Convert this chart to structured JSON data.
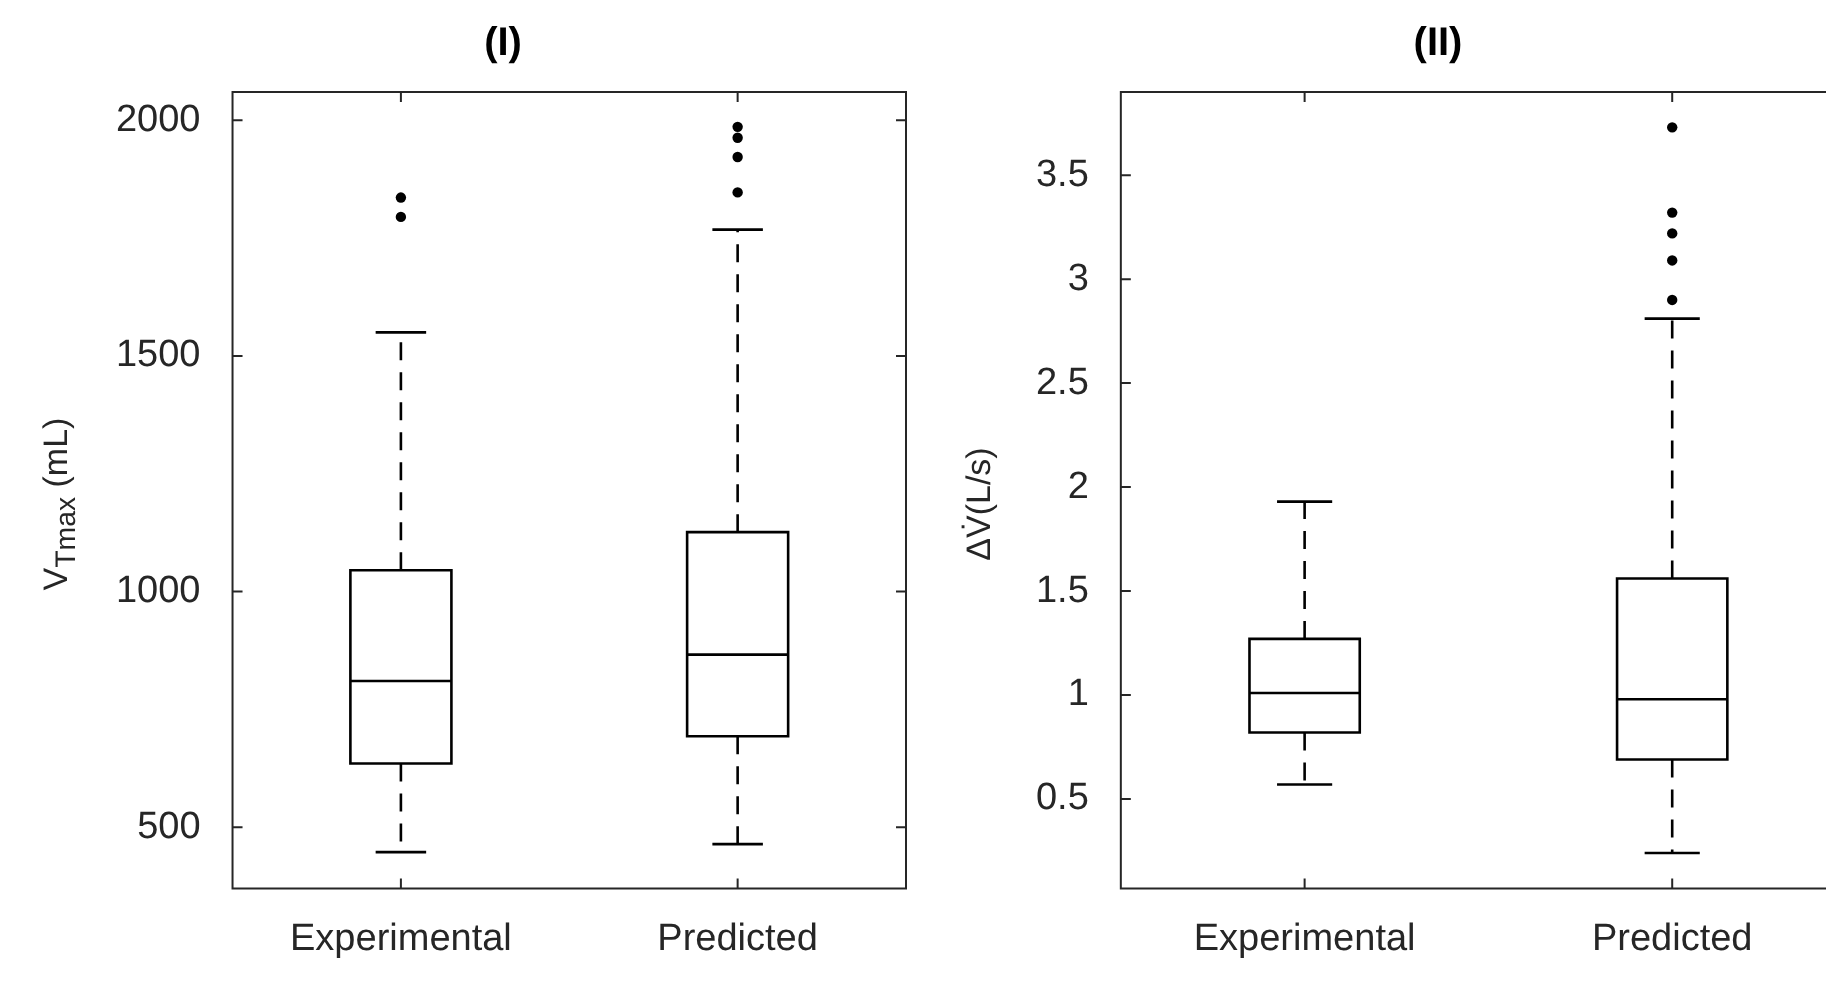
{
  "chart_data": [
    {
      "type": "box",
      "title": "(I)",
      "ylabel": "V$_{Tmax}$ (mL)",
      "categories": [
        "Experimental",
        "Predicted"
      ],
      "boxes": [
        {
          "low": 447,
          "q1": 635,
          "median": 810,
          "q3": 1045,
          "high": 1550,
          "outliers": [
            1795,
            1836
          ]
        },
        {
          "low": 464,
          "q1": 693,
          "median": 866,
          "q3": 1126,
          "high": 1768,
          "outliers": [
            1847,
            1922,
            1963,
            1986
          ]
        }
      ],
      "ylim": [
        370,
        2060
      ],
      "yticks": [
        500,
        1000,
        1500,
        2000
      ]
    },
    {
      "type": "box",
      "title": "(II)",
      "ylabel": "ΔV̇(L/s)",
      "categories": [
        "Experimental",
        "Predicted"
      ],
      "boxes": [
        {
          "low": 0.57,
          "q1": 0.82,
          "median": 1.01,
          "q3": 1.27,
          "high": 1.93
        },
        {
          "low": 0.24,
          "q1": 0.69,
          "median": 0.98,
          "q3": 1.56,
          "high": 2.81,
          "outliers": [
            2.9,
            3.09,
            3.22,
            3.32,
            3.73
          ]
        }
      ],
      "ylim": [
        0.07,
        3.9
      ],
      "yticks": [
        0.5,
        1,
        1.5,
        2,
        2.5,
        3,
        3.5
      ]
    }
  ]
}
